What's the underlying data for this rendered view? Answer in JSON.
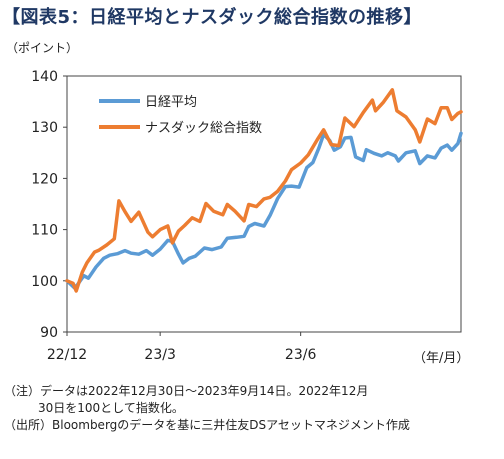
{
  "title": "【図表5：日経平均とナスダック総合指数の推移】",
  "notes": {
    "line1": "（注）データは2022年12月30日～2023年9月14日。2022年12月",
    "line2": "30日を100として指数化。",
    "line3": "（出所）Bloombergのデータを基に三井住友DSアセットマネジメント作成"
  },
  "chart_data": {
    "type": "line",
    "ylabel": "（ポイント）",
    "xlabel": "（年/月）",
    "ylim": [
      90,
      140
    ],
    "yticks": [
      90,
      100,
      110,
      120,
      130,
      140
    ],
    "xlim": [
      "2022-12-30",
      "2023-09-14"
    ],
    "xticks": [
      {
        "label": "22/12",
        "x": "2022-12-30"
      },
      {
        "label": "23/3",
        "x": "2023-03-01"
      },
      {
        "label": "23/6",
        "x": "2023-06-01"
      }
    ],
    "legend_position": "top-left",
    "grid": false,
    "series": [
      {
        "name": "日経平均",
        "color": "#5b9bd5",
        "points": [
          [
            "2022-12-30",
            100
          ],
          [
            "2023-01-04",
            98.6
          ],
          [
            "2023-01-06",
            99.3
          ],
          [
            "2023-01-10",
            101.0
          ],
          [
            "2023-01-13",
            100.5
          ],
          [
            "2023-01-18",
            102.7
          ],
          [
            "2023-01-23",
            104.4
          ],
          [
            "2023-01-27",
            105.0
          ],
          [
            "2023-02-01",
            105.3
          ],
          [
            "2023-02-06",
            105.9
          ],
          [
            "2023-02-10",
            105.4
          ],
          [
            "2023-02-15",
            105.2
          ],
          [
            "2023-02-20",
            105.9
          ],
          [
            "2023-02-24",
            105.0
          ],
          [
            "2023-03-01",
            106.2
          ],
          [
            "2023-03-06",
            107.9
          ],
          [
            "2023-03-09",
            107.7
          ],
          [
            "2023-03-13",
            105.2
          ],
          [
            "2023-03-16",
            103.5
          ],
          [
            "2023-03-20",
            104.4
          ],
          [
            "2023-03-24",
            104.8
          ],
          [
            "2023-03-30",
            106.4
          ],
          [
            "2023-04-04",
            106.1
          ],
          [
            "2023-04-10",
            106.6
          ],
          [
            "2023-04-14",
            108.3
          ],
          [
            "2023-04-20",
            108.5
          ],
          [
            "2023-04-25",
            108.7
          ],
          [
            "2023-04-28",
            110.6
          ],
          [
            "2023-05-02",
            111.2
          ],
          [
            "2023-05-08",
            110.7
          ],
          [
            "2023-05-12",
            112.8
          ],
          [
            "2023-05-17",
            116.1
          ],
          [
            "2023-05-22",
            118.4
          ],
          [
            "2023-05-26",
            118.5
          ],
          [
            "2023-05-31",
            118.3
          ],
          [
            "2023-06-05",
            122.1
          ],
          [
            "2023-06-09",
            123.1
          ],
          [
            "2023-06-13",
            126.0
          ],
          [
            "2023-06-16",
            128.6
          ],
          [
            "2023-06-20",
            127.4
          ],
          [
            "2023-06-23",
            125.5
          ],
          [
            "2023-06-27",
            126.2
          ],
          [
            "2023-06-30",
            127.9
          ],
          [
            "2023-07-04",
            128.0
          ],
          [
            "2023-07-07",
            124.2
          ],
          [
            "2023-07-12",
            123.5
          ],
          [
            "2023-07-14",
            125.6
          ],
          [
            "2023-07-19",
            124.9
          ],
          [
            "2023-07-24",
            124.4
          ],
          [
            "2023-07-28",
            125.0
          ],
          [
            "2023-08-02",
            124.4
          ],
          [
            "2023-08-04",
            123.4
          ],
          [
            "2023-08-09",
            125.0
          ],
          [
            "2023-08-15",
            125.4
          ],
          [
            "2023-08-18",
            122.9
          ],
          [
            "2023-08-23",
            124.4
          ],
          [
            "2023-08-28",
            124.0
          ],
          [
            "2023-09-01",
            125.9
          ],
          [
            "2023-09-05",
            126.5
          ],
          [
            "2023-09-08",
            125.5
          ],
          [
            "2023-09-12",
            126.8
          ],
          [
            "2023-09-14",
            128.8
          ]
        ]
      },
      {
        "name": "ナスダック総合指数",
        "color": "#ed7d31",
        "points": [
          [
            "2022-12-30",
            100
          ],
          [
            "2023-01-03",
            99.5
          ],
          [
            "2023-01-05",
            98.0
          ],
          [
            "2023-01-09",
            101.7
          ],
          [
            "2023-01-12",
            103.5
          ],
          [
            "2023-01-17",
            105.6
          ],
          [
            "2023-01-20",
            106.0
          ],
          [
            "2023-01-25",
            107.0
          ],
          [
            "2023-01-30",
            108.2
          ],
          [
            "2023-02-02",
            115.6
          ],
          [
            "2023-02-06",
            113.5
          ],
          [
            "2023-02-10",
            111.6
          ],
          [
            "2023-02-15",
            113.4
          ],
          [
            "2023-02-21",
            109.5
          ],
          [
            "2023-02-24",
            108.6
          ],
          [
            "2023-03-01",
            110.0
          ],
          [
            "2023-03-06",
            110.7
          ],
          [
            "2023-03-09",
            107.4
          ],
          [
            "2023-03-13",
            109.7
          ],
          [
            "2023-03-17",
            110.8
          ],
          [
            "2023-03-22",
            112.3
          ],
          [
            "2023-03-27",
            111.6
          ],
          [
            "2023-03-31",
            115.1
          ],
          [
            "2023-04-05",
            113.6
          ],
          [
            "2023-04-11",
            112.9
          ],
          [
            "2023-04-14",
            114.9
          ],
          [
            "2023-04-19",
            113.6
          ],
          [
            "2023-04-25",
            111.7
          ],
          [
            "2023-04-28",
            114.9
          ],
          [
            "2023-05-03",
            114.5
          ],
          [
            "2023-05-08",
            116.0
          ],
          [
            "2023-05-12",
            116.3
          ],
          [
            "2023-05-17",
            117.5
          ],
          [
            "2023-05-22",
            119.5
          ],
          [
            "2023-05-26",
            121.7
          ],
          [
            "2023-06-01",
            123.0
          ],
          [
            "2023-06-06",
            124.6
          ],
          [
            "2023-06-12",
            127.6
          ],
          [
            "2023-06-16",
            129.5
          ],
          [
            "2023-06-21",
            126.6
          ],
          [
            "2023-06-26",
            126.4
          ],
          [
            "2023-06-30",
            131.8
          ],
          [
            "2023-07-06",
            130.1
          ],
          [
            "2023-07-12",
            132.9
          ],
          [
            "2023-07-18",
            135.3
          ],
          [
            "2023-07-20",
            133.2
          ],
          [
            "2023-07-25",
            134.8
          ],
          [
            "2023-07-31",
            137.3
          ],
          [
            "2023-08-03",
            133.2
          ],
          [
            "2023-08-09",
            132.0
          ],
          [
            "2023-08-15",
            129.5
          ],
          [
            "2023-08-18",
            127.1
          ],
          [
            "2023-08-23",
            131.6
          ],
          [
            "2023-08-28",
            130.7
          ],
          [
            "2023-09-01",
            133.8
          ],
          [
            "2023-09-05",
            133.8
          ],
          [
            "2023-09-08",
            131.5
          ],
          [
            "2023-09-12",
            132.7
          ],
          [
            "2023-09-14",
            133.0
          ]
        ]
      }
    ]
  }
}
